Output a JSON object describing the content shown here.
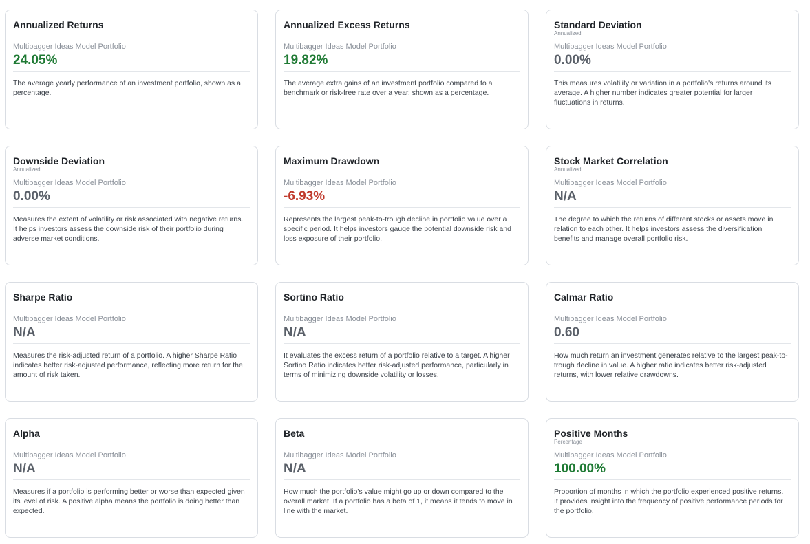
{
  "cards": [
    {
      "title": "Annualized Returns",
      "subtitle": "",
      "portfolio": "Multibagger Ideas Model Portfolio",
      "value": "24.05%",
      "value_tone": "positive",
      "description": "The average yearly performance of an investment portfolio, shown as a percentage."
    },
    {
      "title": "Annualized Excess Returns",
      "subtitle": "",
      "portfolio": "Multibagger Ideas Model Portfolio",
      "value": "19.82%",
      "value_tone": "positive",
      "description": "The average extra gains of an investment portfolio compared to a benchmark or risk-free rate over a year, shown as a percentage."
    },
    {
      "title": "Standard Deviation",
      "subtitle": "Annualized",
      "portfolio": "Multibagger Ideas Model Portfolio",
      "value": "0.00%",
      "value_tone": "neutral",
      "description": "This measures volatility or variation in a portfolio's returns around its average. A higher number indicates greater potential for larger fluctuations in returns."
    },
    {
      "title": "Downside Deviation",
      "subtitle": "Annualized",
      "portfolio": "Multibagger Ideas Model Portfolio",
      "value": "0.00%",
      "value_tone": "neutral",
      "description": "Measures the extent of volatility or risk associated with negative returns. It helps investors assess the downside risk of their portfolio during adverse market conditions."
    },
    {
      "title": "Maximum Drawdown",
      "subtitle": "",
      "portfolio": "Multibagger Ideas Model Portfolio",
      "value": "-6.93%",
      "value_tone": "negative",
      "description": "Represents the largest peak-to-trough decline in portfolio value over a specific period. It helps investors gauge the potential downside risk and loss exposure of their portfolio."
    },
    {
      "title": "Stock Market Correlation",
      "subtitle": "Annualized",
      "portfolio": "Multibagger Ideas Model Portfolio",
      "value": "N/A",
      "value_tone": "neutral",
      "description": "The degree to which the returns of different stocks or assets move in relation to each other. It helps investors assess the diversification benefits and manage overall portfolio risk."
    },
    {
      "title": "Sharpe Ratio",
      "subtitle": "",
      "portfolio": "Multibagger Ideas Model Portfolio",
      "value": "N/A",
      "value_tone": "neutral",
      "description": "Measures the risk-adjusted return of a portfolio. A higher Sharpe Ratio indicates better risk-adjusted performance, reflecting more return for the amount of risk taken."
    },
    {
      "title": "Sortino Ratio",
      "subtitle": "",
      "portfolio": "Multibagger Ideas Model Portfolio",
      "value": "N/A",
      "value_tone": "neutral",
      "description": "It evaluates the excess return of a portfolio relative to a target. A higher Sortino Ratio indicates better risk-adjusted performance, particularly in terms of minimizing downside volatility or losses."
    },
    {
      "title": "Calmar Ratio",
      "subtitle": "",
      "portfolio": "Multibagger Ideas Model Portfolio",
      "value": "0.60",
      "value_tone": "neutral",
      "description": "How much return an investment generates relative to the largest peak-to-trough decline in value. A higher ratio indicates better risk-adjusted returns, with lower relative drawdowns."
    },
    {
      "title": "Alpha",
      "subtitle": "",
      "portfolio": "Multibagger Ideas Model Portfolio",
      "value": "N/A",
      "value_tone": "neutral",
      "description": "Measures if a portfolio is performing better or worse than expected given its level of risk. A positive alpha means the portfolio is doing better than expected."
    },
    {
      "title": "Beta",
      "subtitle": "",
      "portfolio": "Multibagger Ideas Model Portfolio",
      "value": "N/A",
      "value_tone": "neutral",
      "description": "How much the portfolio's value might go up or down compared to the overall market. If a portfolio has a beta of 1, it means it tends to move in line with the market."
    },
    {
      "title": "Positive Months",
      "subtitle": "Percentage",
      "portfolio": "Multibagger Ideas Model Portfolio",
      "value": "100.00%",
      "value_tone": "positive",
      "description": "Proportion of months in which the portfolio experienced positive returns. It provides insight into the frequency of positive performance periods for the portfolio."
    }
  ],
  "colors": {
    "positive": "#1f7a34",
    "negative": "#c0392b",
    "neutral": "#5a6069"
  }
}
